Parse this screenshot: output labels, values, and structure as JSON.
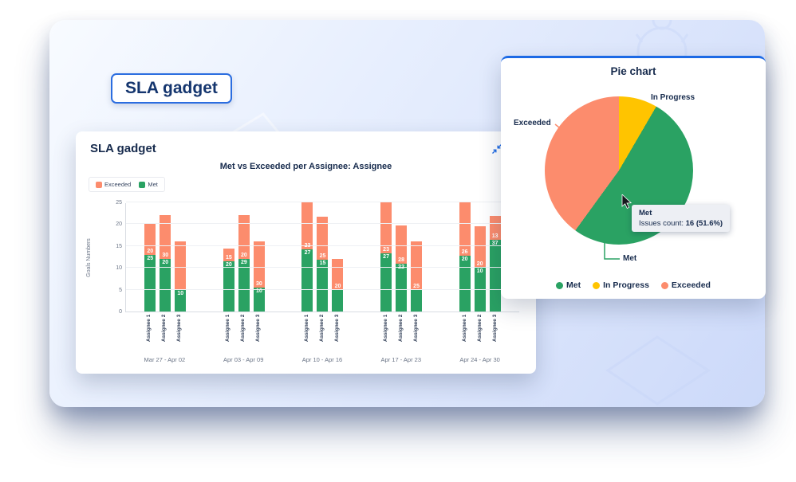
{
  "chip": {
    "label": "SLA gadget"
  },
  "bar_card": {
    "title": "SLA gadget"
  },
  "pie_card": {
    "title": "Pie chart",
    "tooltip": {
      "title": "Met",
      "label": "Issues count:",
      "value": "16 (51.6%)"
    }
  },
  "colors": {
    "met": "#2aa263",
    "exceeded": "#fc8c6d",
    "in_progress": "#ffc400",
    "accent_blue": "#1d6ae5",
    "navy": "#172b4d"
  },
  "chart_data": [
    {
      "type": "bar",
      "title": "Met vs Exceeded per Assignee: Assignee",
      "xlabel": "",
      "ylabel": "Goals Numbers",
      "ylim": [
        0,
        25
      ],
      "yticks": [
        0,
        5,
        10,
        15,
        20,
        25
      ],
      "grid": true,
      "legend_position": "top-left",
      "legend": [
        {
          "name": "Exceeded",
          "color": "#fc8c6d"
        },
        {
          "name": "Met",
          "color": "#2aa263"
        }
      ],
      "bar_labels": [
        "Assignee 1",
        "Assignee 2",
        "Assignee 3"
      ],
      "groups": [
        {
          "category": "Mar 27 - Apr 02",
          "bars": [
            {
              "met_value": 13,
              "met_label": "25",
              "exceeded_value": 7,
              "exceeded_label": "20"
            },
            {
              "met_value": 12,
              "met_label": "20",
              "exceeded_value": 10,
              "exceeded_label": "30"
            },
            {
              "met_value": 5,
              "met_label": "10",
              "exceeded_value": 11,
              "exceeded_label": ""
            }
          ]
        },
        {
          "category": "Apr 03 - Apr 09",
          "bars": [
            {
              "met_value": 11.5,
              "met_label": "20",
              "exceeded_value": 3,
              "exceeded_label": "15"
            },
            {
              "met_value": 12,
              "met_label": "29",
              "exceeded_value": 10,
              "exceeded_label": "20"
            },
            {
              "met_value": 5.5,
              "met_label": "10",
              "exceeded_value": 10.5,
              "exceeded_label": "30"
            }
          ]
        },
        {
          "category": "Apr 10 - Apr 16",
          "bars": [
            {
              "met_value": 14.2,
              "met_label": "27",
              "exceeded_value": 10.8,
              "exceeded_label": "23"
            },
            {
              "met_value": 11.9,
              "met_label": "15",
              "exceeded_value": 9.8,
              "exceeded_label": "25"
            },
            {
              "met_value": 4.9,
              "met_label": "",
              "exceeded_value": 7.1,
              "exceeded_label": "20"
            }
          ]
        },
        {
          "category": "Apr 17 - Apr 23",
          "bars": [
            {
              "met_value": 13.3,
              "met_label": "27",
              "exceeded_value": 11.7,
              "exceeded_label": "23"
            },
            {
              "met_value": 10.9,
              "met_label": "22",
              "exceeded_value": 8.8,
              "exceeded_label": "28"
            },
            {
              "met_value": 4.9,
              "met_label": "",
              "exceeded_value": 11.1,
              "exceeded_label": "25"
            }
          ]
        },
        {
          "category": "Apr 24 - Apr 30",
          "bars": [
            {
              "met_value": 12.8,
              "met_label": "20",
              "exceeded_value": 12.2,
              "exceeded_label": "26"
            },
            {
              "met_value": 10,
              "met_label": "10",
              "exceeded_value": 9.5,
              "exceeded_label": "20"
            },
            {
              "met_value": 16.4,
              "met_label": "37",
              "exceeded_value": 5.5,
              "exceeded_label": "13"
            }
          ]
        }
      ]
    },
    {
      "type": "pie",
      "title": "Pie chart",
      "slices": [
        {
          "name": "In Progress",
          "pct": 8.4,
          "color": "#ffc400"
        },
        {
          "name": "Met",
          "pct": 51.6,
          "color": "#2aa263"
        },
        {
          "name": "Exceeded",
          "pct": 40.0,
          "color": "#fc8c6d"
        }
      ],
      "tooltip": {
        "series": "Met",
        "label": "Issues count:",
        "value": "16 (51.6%)"
      },
      "legend": [
        "Met",
        "In Progress",
        "Exceeded"
      ],
      "legend_position": "bottom"
    }
  ]
}
